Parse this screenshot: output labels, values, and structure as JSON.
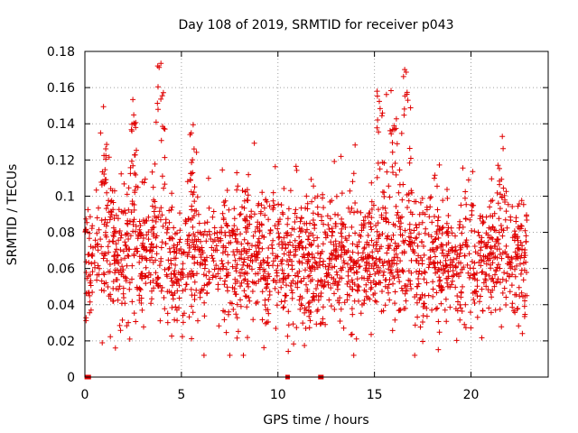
{
  "chart_data": {
    "type": "scatter",
    "title": "Day 108 of 2019, SRMTID for receiver p043",
    "xlabel": "GPS time / hours",
    "ylabel": "SRMTID / TECUs",
    "xlim": [
      0,
      24
    ],
    "ylim": [
      0,
      0.18
    ],
    "x_ticks": [
      0,
      5,
      10,
      15,
      20
    ],
    "x_tick_labels": [
      "0",
      "5",
      "10",
      "15",
      "20"
    ],
    "y_ticks": [
      0,
      0.02,
      0.04,
      0.06,
      0.08,
      0.1,
      0.12,
      0.14,
      0.16,
      0.18
    ],
    "y_tick_labels": [
      "0",
      "0.02",
      "0.04",
      "0.06",
      "0.08",
      "0.1",
      "0.12",
      "0.14",
      "0.16",
      "0.18"
    ],
    "grid": true,
    "marker": "plus",
    "color": "#e00000",
    "x_range_of_points": [
      0,
      22.9
    ],
    "baseline_mean": 0.065,
    "baseline_spread": 0.018,
    "bursts": [
      {
        "x_center": 1.0,
        "width": 0.4,
        "peak": 0.135
      },
      {
        "x_center": 2.5,
        "width": 0.3,
        "peak": 0.146
      },
      {
        "x_center": 3.9,
        "width": 0.35,
        "peak": 0.174
      },
      {
        "x_center": 5.6,
        "width": 0.3,
        "peak": 0.127
      },
      {
        "x_center": 8.4,
        "width": 0.3,
        "peak": 0.111
      },
      {
        "x_center": 15.3,
        "width": 0.35,
        "peak": 0.165
      },
      {
        "x_center": 16.0,
        "width": 0.3,
        "peak": 0.14
      },
      {
        "x_center": 16.6,
        "width": 0.3,
        "peak": 0.174
      },
      {
        "x_center": 21.6,
        "width": 0.3,
        "peak": 0.118
      }
    ],
    "zero_points_x": [
      0.1,
      0.2,
      10.5,
      12.2,
      12.25
    ]
  }
}
